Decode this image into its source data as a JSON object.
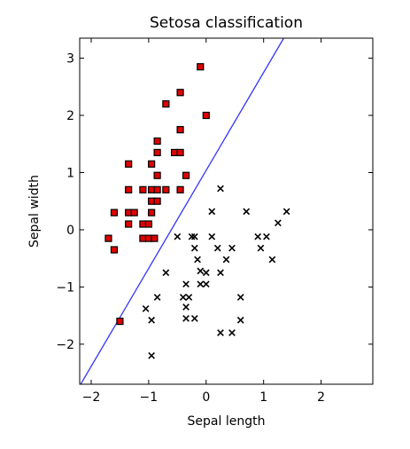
{
  "chart_data": {
    "type": "scatter",
    "title": "Setosa classification",
    "xlabel": "Sepal length",
    "ylabel": "Sepal width",
    "xlim": [
      -2.2,
      2.9
    ],
    "ylim": [
      -2.7,
      3.35
    ],
    "xticks": [
      -2,
      -1,
      0,
      1,
      2
    ],
    "yticks": [
      -2,
      -1,
      0,
      1,
      2,
      3
    ],
    "xtick_labels": [
      "−2",
      "−1",
      "0",
      "1",
      "2"
    ],
    "ytick_labels": [
      "−2",
      "−1",
      "0",
      "1",
      "2",
      "3"
    ],
    "grid": false,
    "colors": {
      "class_a": "#e00000",
      "class_b": "#000000",
      "boundary": "#3333ff"
    },
    "decision_boundary": {
      "x": [
        -2.2,
        1.35
      ],
      "y": [
        -2.73,
        3.35
      ]
    },
    "series": [
      {
        "marker": "square",
        "points": [
          [
            -0.1,
            2.85
          ],
          [
            -0.45,
            2.4
          ],
          [
            -0.7,
            2.2
          ],
          [
            0.0,
            2.0
          ],
          [
            -0.45,
            1.75
          ],
          [
            -0.85,
            1.55
          ],
          [
            -0.85,
            1.35
          ],
          [
            -0.55,
            1.35
          ],
          [
            -0.45,
            1.35
          ],
          [
            -1.35,
            1.15
          ],
          [
            -0.95,
            1.15
          ],
          [
            -0.85,
            0.95
          ],
          [
            -0.35,
            0.95
          ],
          [
            -1.35,
            0.7
          ],
          [
            -1.1,
            0.7
          ],
          [
            -0.95,
            0.7
          ],
          [
            -0.85,
            0.7
          ],
          [
            -0.7,
            0.7
          ],
          [
            -0.45,
            0.7
          ],
          [
            -0.95,
            0.5
          ],
          [
            -0.85,
            0.5
          ],
          [
            -1.6,
            0.3
          ],
          [
            -1.35,
            0.3
          ],
          [
            -1.25,
            0.3
          ],
          [
            -0.95,
            0.3
          ],
          [
            -1.35,
            0.1
          ],
          [
            -1.1,
            0.1
          ],
          [
            -1.0,
            0.1
          ],
          [
            -1.7,
            -0.15
          ],
          [
            -1.1,
            -0.15
          ],
          [
            -1.0,
            -0.15
          ],
          [
            -0.9,
            -0.15
          ],
          [
            -1.6,
            -0.35
          ],
          [
            -1.5,
            -1.6
          ]
        ]
      },
      {
        "marker": "x",
        "points": [
          [
            0.25,
            0.72
          ],
          [
            0.1,
            0.32
          ],
          [
            0.7,
            0.32
          ],
          [
            1.4,
            0.32
          ],
          [
            1.25,
            0.12
          ],
          [
            -0.5,
            -0.12
          ],
          [
            -0.25,
            -0.12
          ],
          [
            -0.2,
            -0.12
          ],
          [
            0.1,
            -0.12
          ],
          [
            0.9,
            -0.12
          ],
          [
            1.05,
            -0.12
          ],
          [
            -0.2,
            -0.32
          ],
          [
            0.2,
            -0.32
          ],
          [
            0.45,
            -0.32
          ],
          [
            0.95,
            -0.32
          ],
          [
            -0.15,
            -0.52
          ],
          [
            0.35,
            -0.52
          ],
          [
            1.15,
            -0.52
          ],
          [
            -0.1,
            -0.72
          ],
          [
            -0.7,
            -0.75
          ],
          [
            0.0,
            -0.75
          ],
          [
            0.25,
            -0.75
          ],
          [
            -0.35,
            -0.95
          ],
          [
            -0.1,
            -0.95
          ],
          [
            0.0,
            -0.95
          ],
          [
            -0.85,
            -1.18
          ],
          [
            -0.4,
            -1.18
          ],
          [
            -0.3,
            -1.18
          ],
          [
            0.6,
            -1.18
          ],
          [
            -0.35,
            -1.35
          ],
          [
            -1.05,
            -1.38
          ],
          [
            -0.35,
            -1.55
          ],
          [
            -0.2,
            -1.55
          ],
          [
            -0.95,
            -1.58
          ],
          [
            0.6,
            -1.58
          ],
          [
            0.25,
            -1.8
          ],
          [
            0.45,
            -1.8
          ],
          [
            -0.95,
            -2.2
          ]
        ]
      }
    ]
  }
}
